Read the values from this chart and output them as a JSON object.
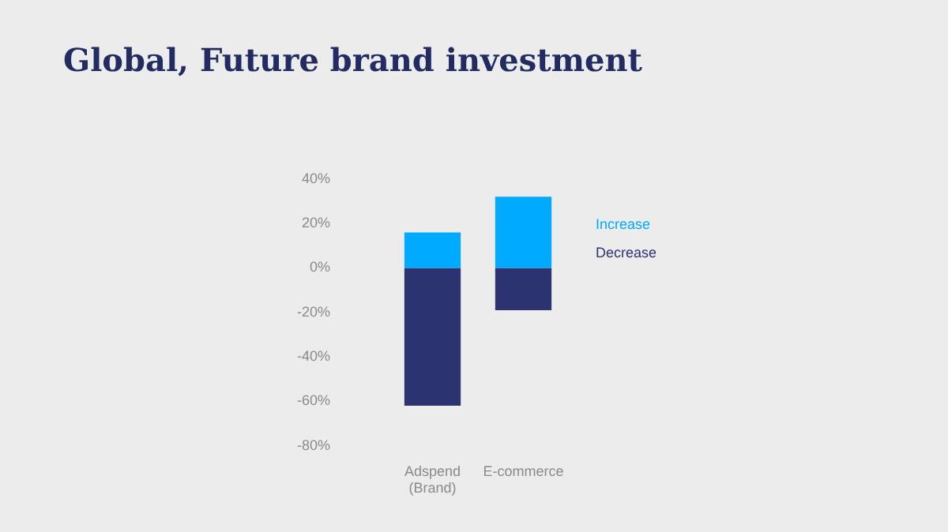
{
  "chart_data": {
    "type": "bar",
    "title": "Global, Future brand investment",
    "categories": [
      "Adspend (Brand)",
      "E-commerce"
    ],
    "stacked": true,
    "series": [
      {
        "name": "Increase",
        "color": "#00aaff",
        "values": [
          16,
          32
        ]
      },
      {
        "name": "Decrease",
        "color": "#2b3470",
        "values": [
          -62,
          -19
        ]
      }
    ],
    "ylim": [
      -80,
      40
    ],
    "yticks": [
      {
        "value": -80,
        "label": "-80%"
      },
      {
        "value": -60,
        "label": "-60%"
      },
      {
        "value": -40,
        "label": "-40%"
      },
      {
        "value": -20,
        "label": "-20%"
      },
      {
        "value": 0,
        "label": "0%"
      },
      {
        "value": 20,
        "label": "20%"
      },
      {
        "value": 40,
        "label": "40%"
      }
    ],
    "grid": false,
    "legend": "right"
  }
}
